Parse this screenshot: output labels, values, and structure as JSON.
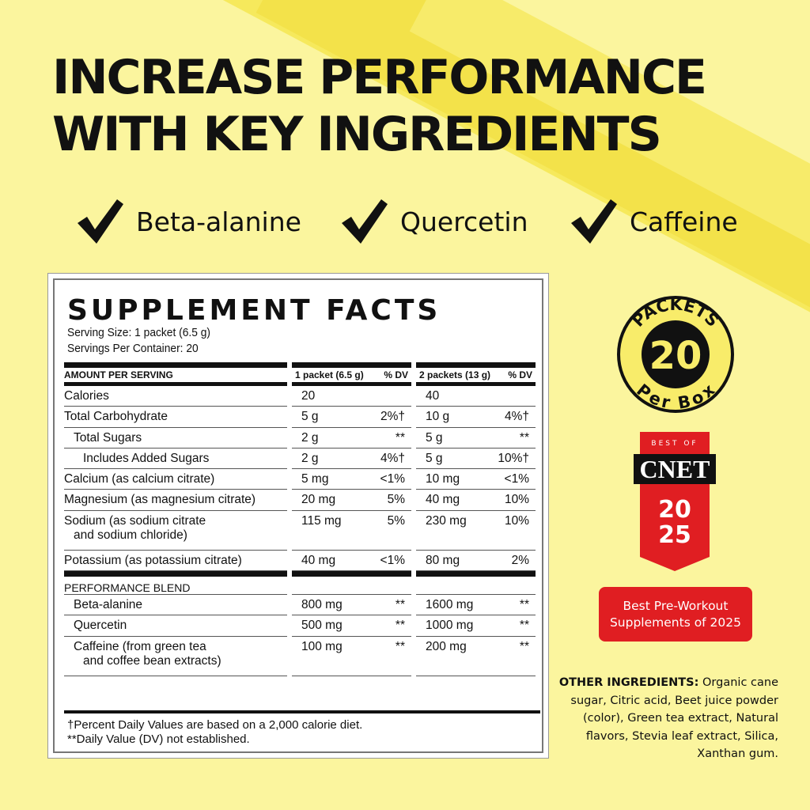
{
  "headline": {
    "line1": "INCREASE PERFORMANCE",
    "line2": "WITH KEY INGREDIENTS"
  },
  "checks": [
    {
      "icon": "checkmark-icon",
      "label": "Beta-alanine"
    },
    {
      "icon": "checkmark-icon",
      "label": "Quercetin"
    },
    {
      "icon": "checkmark-icon",
      "label": "Caffeine"
    }
  ],
  "facts": {
    "title": "SUPPLEMENT FACTS",
    "serving_size": "Serving Size: 1 packet (6.5 g)",
    "servings_per_container": "Servings Per Container: 20",
    "headers": {
      "amount": "AMOUNT PER SERVING",
      "col1": "1 packet (6.5 g)",
      "dv1": "% DV",
      "col2": "2 packets (13 g)",
      "dv2": "% DV"
    },
    "rows": [
      {
        "label": "Calories",
        "v1": "20",
        "d1": "",
        "v2": "40",
        "d2": ""
      },
      {
        "label": "Total Carbohydrate",
        "v1": "5 g",
        "d1": "2%†",
        "v2": "10 g",
        "d2": "4%†"
      },
      {
        "label": "Total Sugars",
        "v1": "2 g",
        "d1": "**",
        "v2": "5 g",
        "d2": "**"
      },
      {
        "label": "Includes Added Sugars",
        "v1": "2 g",
        "d1": "4%†",
        "v2": "5 g",
        "d2": "10%†"
      },
      {
        "label": "Calcium (as calcium citrate)",
        "v1": "5 mg",
        "d1": "<1%",
        "v2": "10 mg",
        "d2": "<1%"
      },
      {
        "label": "Magnesium (as magnesium citrate)",
        "v1": "20 mg",
        "d1": "5%",
        "v2": "40 mg",
        "d2": "10%"
      },
      {
        "label": "Sodium (as sodium citrate",
        "label2": "and sodium chloride)",
        "v1": "115 mg",
        "d1": "5%",
        "v2": "230 mg",
        "d2": "10%"
      },
      {
        "label": "Potassium (as potassium citrate)",
        "v1": "40 mg",
        "d1": "<1%",
        "v2": "80 mg",
        "d2": "2%"
      }
    ],
    "blend_title": "PERFORMANCE BLEND",
    "blend": [
      {
        "label": "Beta-alanine",
        "v1": "800 mg",
        "d1": "**",
        "v2": "1600 mg",
        "d2": "**"
      },
      {
        "label": "Quercetin",
        "v1": "500 mg",
        "d1": "**",
        "v2": "1000 mg",
        "d2": "**"
      },
      {
        "label": "Caffeine (from green tea",
        "label2": "and coffee bean extracts)",
        "v1": "100 mg",
        "d1": "**",
        "v2": "200 mg",
        "d2": "**"
      }
    ],
    "footnote1": "†Percent Daily Values are based on a 2,000 calorie diet.",
    "footnote2": "**Daily Value (DV) not established."
  },
  "badge": {
    "top": "PACKETS",
    "number": "20",
    "bottom": "Per Box"
  },
  "cnet": {
    "best_of": "BEST OF",
    "logo": "CNET",
    "year1": "20",
    "year2": "25"
  },
  "award": {
    "line1": "Best Pre-Workout",
    "line2": "Supplements of 2025"
  },
  "other_ingredients": {
    "label": "OTHER INGREDIENTS:",
    "text": "Organic cane sugar, Citric acid, Beet juice powder (color), Green tea extract, Natural flavors, Stevia leaf extract, Silica, Xanthan gum."
  },
  "colors": {
    "background": "#fbf59e",
    "stripe": "#f6e95c",
    "red": "#e01e22",
    "black": "#111111"
  }
}
